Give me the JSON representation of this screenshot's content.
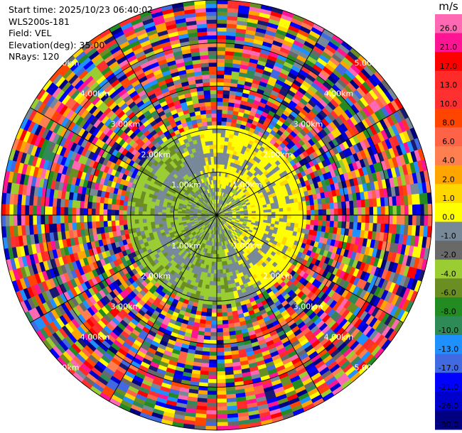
{
  "info": {
    "start_time": "Start time: 2025/10/23 06:40:02",
    "instrument": "WLS200s-181",
    "field": "Field: VEL",
    "elevation": "Elevation(deg): 35.00",
    "nrays": "NRays: 120"
  },
  "colorbar": {
    "unit": "m/s",
    "ticks": [
      "26.0",
      "21.0",
      "17.0",
      "13.0",
      "10.0",
      "8.0",
      "6.0",
      "4.0",
      "2.0",
      "1.0",
      "0.0",
      "-1.0",
      "-2.0",
      "-4.0",
      "-6.0",
      "-8.0",
      "-10.0",
      "-13.0",
      "-17.0",
      "-21.0",
      "-26.0",
      "-30.0"
    ],
    "colors": [
      "#ff69b4",
      "#ff1493",
      "#ff0000",
      "#ff2a2a",
      "#ff3030",
      "#ff4500",
      "#ff6347",
      "#ff7f50",
      "#ffa500",
      "#ffd700",
      "#ffff00",
      "#778899",
      "#696969",
      "#9acd32",
      "#6b8e23",
      "#228b22",
      "#2e8b57",
      "#1e90ff",
      "#4169e1",
      "#0000ff",
      "#0000cd",
      "#000080",
      "#191970"
    ]
  },
  "range_labels": [
    "1.00km",
    "2.00km",
    "3.00km",
    "4.00km",
    "5.00km"
  ],
  "chart_data": {
    "type": "heatmap",
    "field": "VEL",
    "unit": "m/s",
    "elevation_deg": 35.0,
    "nrays": 120,
    "max_range_km": 5.0,
    "range_rings_km": [
      1,
      2,
      3,
      4,
      5
    ],
    "color_scale_m_s": [
      -30,
      -26,
      -21,
      -17,
      -13,
      -10,
      -8,
      -6,
      -4,
      -2,
      -1,
      0,
      1,
      2,
      4,
      6,
      8,
      10,
      13,
      17,
      21,
      26
    ],
    "pattern": {
      "inner_core_km": 0.7,
      "toroidal_band_km": [
        0.7,
        2.1
      ],
      "noise_beyond_km": 2.1,
      "positive_sector": "east-northeast (yellow, ~2 to 4 m/s)",
      "negative_sector": "west-southwest (green, ~-2 to -6 m/s)"
    }
  }
}
